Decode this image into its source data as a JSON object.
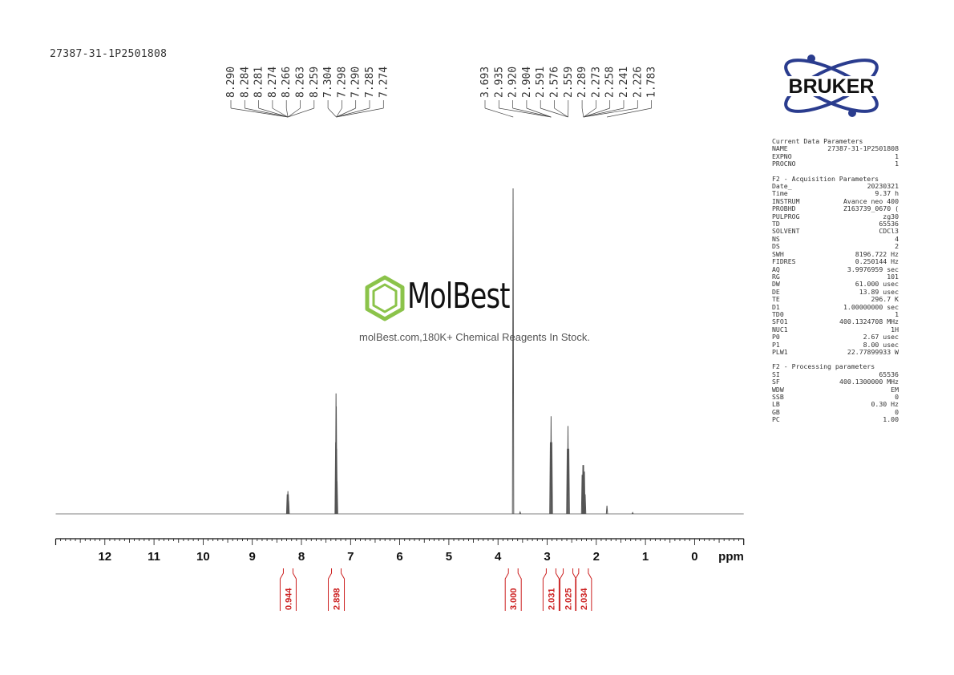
{
  "sample_id": "27387-31-1P2501808",
  "colors": {
    "spectrum": "#555555",
    "integral": "#cc1f1f",
    "logo_green": "#8bc34a",
    "logo_blue": "#2a3c8e"
  },
  "watermark": {
    "logo_text": "MolBest",
    "caption": "molBest.com,180K+ Chemical Reagents In Stock."
  },
  "brand_logo": {
    "text": "BRUKER"
  },
  "chart_data": {
    "type": "line",
    "title": "",
    "xlabel": "ppm",
    "xlim": [
      13,
      -1
    ],
    "x_reversed": true,
    "ticks": [
      12,
      11,
      10,
      9,
      8,
      7,
      6,
      5,
      4,
      3,
      2,
      1,
      0
    ],
    "tick_labels": [
      "12",
      "11",
      "10",
      "9",
      "8",
      "7",
      "6",
      "5",
      "4",
      "3",
      "2",
      "1",
      "0"
    ],
    "peaks": [
      {
        "ppm": 8.29,
        "height": 0.06
      },
      {
        "ppm": 8.284,
        "height": 0.05
      },
      {
        "ppm": 8.275,
        "height": 0.07
      },
      {
        "ppm": 8.266,
        "height": 0.06
      },
      {
        "ppm": 8.26,
        "height": 0.04
      },
      {
        "ppm": 7.304,
        "height": 0.22
      },
      {
        "ppm": 7.296,
        "height": 0.37
      },
      {
        "ppm": 7.29,
        "height": 0.33
      },
      {
        "ppm": 7.283,
        "height": 0.2
      },
      {
        "ppm": 7.274,
        "height": 0.1
      },
      {
        "ppm": 3.693,
        "height": 1.0
      },
      {
        "ppm": 2.935,
        "height": 0.22
      },
      {
        "ppm": 2.92,
        "height": 0.3
      },
      {
        "ppm": 2.904,
        "height": 0.22
      },
      {
        "ppm": 2.591,
        "height": 0.2
      },
      {
        "ppm": 2.576,
        "height": 0.27
      },
      {
        "ppm": 2.559,
        "height": 0.2
      },
      {
        "ppm": 2.289,
        "height": 0.12
      },
      {
        "ppm": 2.273,
        "height": 0.15
      },
      {
        "ppm": 2.258,
        "height": 0.15
      },
      {
        "ppm": 2.241,
        "height": 0.13
      },
      {
        "ppm": 2.226,
        "height": 0.06
      },
      {
        "ppm": 1.783,
        "height": 0.025
      },
      {
        "ppm": 3.55,
        "height": 0.006
      },
      {
        "ppm": 1.26,
        "height": 0.004
      }
    ],
    "peak_labels_left": [
      "8.290",
      "8.284",
      "8.281",
      "8.274",
      "8.266",
      "8.263",
      "8.259",
      "7.304",
      "7.298",
      "7.290",
      "7.285",
      "7.274"
    ],
    "peak_labels_right": [
      "3.693",
      "2.935",
      "2.920",
      "2.904",
      "2.591",
      "2.576",
      "2.559",
      "2.289",
      "2.273",
      "2.258",
      "2.241",
      "2.226",
      "1.783"
    ],
    "integrals": [
      {
        "ppm": 8.27,
        "value": "0.944"
      },
      {
        "ppm": 7.29,
        "value": "2.898"
      },
      {
        "ppm": 3.69,
        "value": "3.000"
      },
      {
        "ppm": 2.92,
        "value": "2.031"
      },
      {
        "ppm": 2.575,
        "value": "2.025"
      },
      {
        "ppm": 2.26,
        "value": "2.034"
      }
    ]
  },
  "parameters": {
    "current": {
      "title": "Current Data Parameters",
      "rows": [
        [
          "NAME",
          "27387-31-1P2501808"
        ],
        [
          "EXPNO",
          "1"
        ],
        [
          "PROCNO",
          "1"
        ]
      ]
    },
    "acquisition": {
      "title": "F2 - Acquisition Parameters",
      "rows": [
        [
          "Date_",
          "20230321"
        ],
        [
          "Time",
          "9.37 h"
        ],
        [
          "INSTRUM",
          "Avance neo 400"
        ],
        [
          "PROBHD",
          "Z163739_0670 ("
        ],
        [
          "PULPROG",
          "zg30"
        ],
        [
          "TD",
          "65536"
        ],
        [
          "SOLVENT",
          "CDCl3"
        ],
        [
          "NS",
          "4"
        ],
        [
          "DS",
          "2"
        ],
        [
          "SWH",
          "8196.722 Hz"
        ],
        [
          "FIDRES",
          "0.250144 Hz"
        ],
        [
          "AQ",
          "3.9976959 sec"
        ],
        [
          "RG",
          "101"
        ],
        [
          "DW",
          "61.000 usec"
        ],
        [
          "DE",
          "13.89 usec"
        ],
        [
          "TE",
          "296.7 K"
        ],
        [
          "D1",
          "1.00000000 sec"
        ],
        [
          "TD0",
          "1"
        ],
        [
          "SFO1",
          "400.1324708 MHz"
        ],
        [
          "NUC1",
          "1H"
        ],
        [
          "P0",
          "2.67 usec"
        ],
        [
          "P1",
          "8.00 usec"
        ],
        [
          "PLW1",
          "22.77899933 W"
        ]
      ]
    },
    "processing": {
      "title": "F2 - Processing parameters",
      "rows": [
        [
          "SI",
          "65536"
        ],
        [
          "SF",
          "400.1300000 MHz"
        ],
        [
          "WDW",
          "EM"
        ],
        [
          "SSB",
          "0"
        ],
        [
          "LB",
          "0.30 Hz"
        ],
        [
          "GB",
          "0"
        ],
        [
          "PC",
          "1.00"
        ]
      ]
    }
  }
}
